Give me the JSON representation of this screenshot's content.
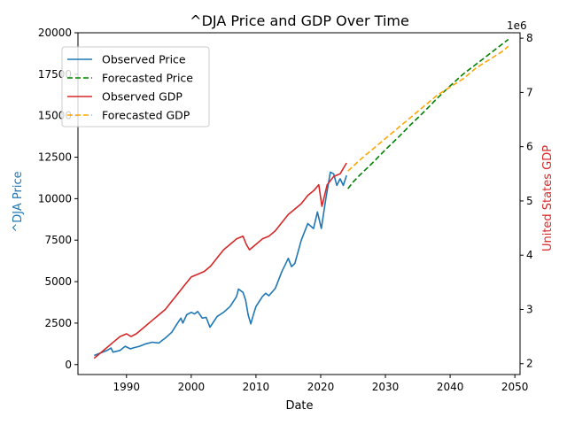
{
  "chart_data": {
    "type": "line",
    "title": "^DJA Price and GDP Over Time",
    "xlabel": "Date",
    "ylabel_left": "^DJA Price",
    "ylabel_right": "United States GDP",
    "right_axis_offset_text": "1e6",
    "xlim": [
      1982.5,
      2050.8
    ],
    "ylim_left": [
      -600,
      20000
    ],
    "ylim_right": [
      1.8,
      8.1
    ],
    "x_ticks": [
      1990,
      2000,
      2010,
      2020,
      2030,
      2040,
      2050
    ],
    "x_tick_labels": [
      "1990",
      "2000",
      "2010",
      "2020",
      "2030",
      "2040",
      "2050"
    ],
    "y_left_ticks": [
      0,
      2500,
      5000,
      7500,
      10000,
      12500,
      15000,
      17500,
      20000
    ],
    "y_left_tick_labels": [
      "0",
      "2500",
      "5000",
      "7500",
      "10000",
      "12500",
      "15000",
      "17500",
      "20000"
    ],
    "y_right_ticks": [
      2,
      3,
      4,
      5,
      6,
      7,
      8
    ],
    "y_right_tick_labels": [
      "2",
      "3",
      "4",
      "5",
      "6",
      "7",
      "8"
    ],
    "grid": false,
    "legend_placement": "upper-left",
    "series": [
      {
        "name": "Observed Price",
        "axis": "left",
        "color": "#1f77b4",
        "style": "solid",
        "points": [
          [
            1985.0,
            550
          ],
          [
            1986.0,
            700
          ],
          [
            1987.0,
            850
          ],
          [
            1987.6,
            1000
          ],
          [
            1987.9,
            750
          ],
          [
            1989.0,
            850
          ],
          [
            1989.8,
            1100
          ],
          [
            1990.6,
            950
          ],
          [
            1991.0,
            1000
          ],
          [
            1992.0,
            1100
          ],
          [
            1993.0,
            1250
          ],
          [
            1994.0,
            1350
          ],
          [
            1995.0,
            1300
          ],
          [
            1996.0,
            1600
          ],
          [
            1997.0,
            1950
          ],
          [
            1997.8,
            2450
          ],
          [
            1998.4,
            2800
          ],
          [
            1998.7,
            2500
          ],
          [
            1999.3,
            3000
          ],
          [
            2000.0,
            3150
          ],
          [
            2000.5,
            3050
          ],
          [
            2001.0,
            3200
          ],
          [
            2001.7,
            2800
          ],
          [
            2002.3,
            2850
          ],
          [
            2002.9,
            2250
          ],
          [
            2003.5,
            2600
          ],
          [
            2004.0,
            2900
          ],
          [
            2005.0,
            3150
          ],
          [
            2006.0,
            3500
          ],
          [
            2007.0,
            4100
          ],
          [
            2007.3,
            4550
          ],
          [
            2008.0,
            4350
          ],
          [
            2008.4,
            3900
          ],
          [
            2008.8,
            3000
          ],
          [
            2009.2,
            2450
          ],
          [
            2009.6,
            3000
          ],
          [
            2010.0,
            3500
          ],
          [
            2011.0,
            4100
          ],
          [
            2011.5,
            4300
          ],
          [
            2012.0,
            4150
          ],
          [
            2013.0,
            4600
          ],
          [
            2014.0,
            5600
          ],
          [
            2015.0,
            6400
          ],
          [
            2015.5,
            5900
          ],
          [
            2016.0,
            6100
          ],
          [
            2017.0,
            7500
          ],
          [
            2018.0,
            8500
          ],
          [
            2018.9,
            8200
          ],
          [
            2019.5,
            9200
          ],
          [
            2020.1,
            8200
          ],
          [
            2020.8,
            10000
          ],
          [
            2021.5,
            11600
          ],
          [
            2022.0,
            11500
          ],
          [
            2022.5,
            10800
          ],
          [
            2023.0,
            11200
          ],
          [
            2023.5,
            10800
          ],
          [
            2024.0,
            11400
          ]
        ]
      },
      {
        "name": "Forecasted Price",
        "axis": "left",
        "color": "#008000",
        "style": "dashed",
        "points": [
          [
            2024.2,
            10600
          ],
          [
            2025.0,
            11000
          ],
          [
            2026.0,
            11400
          ],
          [
            2028.0,
            12150
          ],
          [
            2030.0,
            12950
          ],
          [
            2032.0,
            13700
          ],
          [
            2034.0,
            14500
          ],
          [
            2036.0,
            15250
          ],
          [
            2038.0,
            16050
          ],
          [
            2040.0,
            16800
          ],
          [
            2042.0,
            17500
          ],
          [
            2044.0,
            18100
          ],
          [
            2046.0,
            18700
          ],
          [
            2048.0,
            19300
          ],
          [
            2049.0,
            19600
          ]
        ]
      },
      {
        "name": "Observed GDP",
        "axis": "right",
        "color": "#d62728",
        "style": "solid",
        "points": [
          [
            1985.0,
            2.1
          ],
          [
            1986.0,
            2.2
          ],
          [
            1987.0,
            2.3
          ],
          [
            1988.0,
            2.4
          ],
          [
            1989.0,
            2.5
          ],
          [
            1990.0,
            2.55
          ],
          [
            1990.7,
            2.5
          ],
          [
            1991.5,
            2.55
          ],
          [
            1992.0,
            2.6
          ],
          [
            1993.0,
            2.7
          ],
          [
            1994.0,
            2.8
          ],
          [
            1995.0,
            2.9
          ],
          [
            1996.0,
            3.0
          ],
          [
            1997.0,
            3.15
          ],
          [
            1998.0,
            3.3
          ],
          [
            1999.0,
            3.45
          ],
          [
            2000.0,
            3.6
          ],
          [
            2001.0,
            3.65
          ],
          [
            2002.0,
            3.7
          ],
          [
            2003.0,
            3.8
          ],
          [
            2004.0,
            3.95
          ],
          [
            2005.0,
            4.1
          ],
          [
            2006.0,
            4.2
          ],
          [
            2007.0,
            4.3
          ],
          [
            2008.0,
            4.35
          ],
          [
            2008.5,
            4.2
          ],
          [
            2009.0,
            4.1
          ],
          [
            2010.0,
            4.2
          ],
          [
            2011.0,
            4.3
          ],
          [
            2012.0,
            4.35
          ],
          [
            2013.0,
            4.45
          ],
          [
            2014.0,
            4.6
          ],
          [
            2015.0,
            4.75
          ],
          [
            2016.0,
            4.85
          ],
          [
            2017.0,
            4.95
          ],
          [
            2018.0,
            5.1
          ],
          [
            2019.0,
            5.2
          ],
          [
            2019.7,
            5.3
          ],
          [
            2020.2,
            4.9
          ],
          [
            2020.5,
            5.05
          ],
          [
            2021.0,
            5.3
          ],
          [
            2022.0,
            5.45
          ],
          [
            2023.0,
            5.5
          ],
          [
            2024.0,
            5.7
          ]
        ]
      },
      {
        "name": "Forecasted GDP",
        "axis": "right",
        "color": "#ffa500",
        "style": "dashed",
        "points": [
          [
            2024.2,
            5.55
          ],
          [
            2026.0,
            5.75
          ],
          [
            2028.0,
            5.95
          ],
          [
            2030.0,
            6.15
          ],
          [
            2032.0,
            6.35
          ],
          [
            2034.0,
            6.55
          ],
          [
            2036.0,
            6.75
          ],
          [
            2038.0,
            6.95
          ],
          [
            2040.0,
            7.1
          ],
          [
            2042.0,
            7.25
          ],
          [
            2044.0,
            7.45
          ],
          [
            2046.0,
            7.6
          ],
          [
            2048.0,
            7.75
          ],
          [
            2049.0,
            7.85
          ]
        ]
      }
    ]
  }
}
